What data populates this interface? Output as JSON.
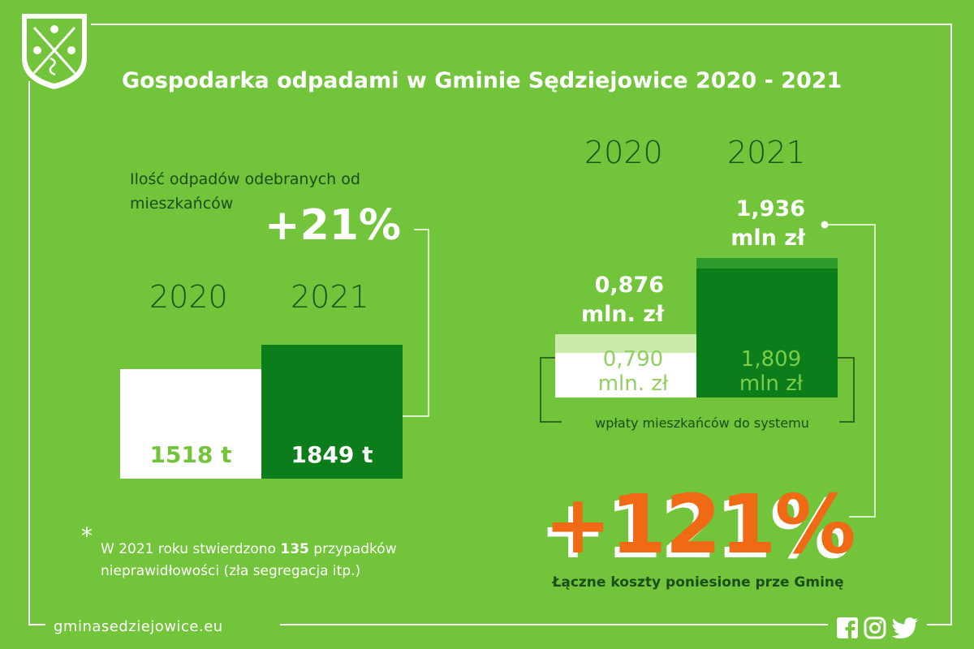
{
  "title": "Gospodarka odpadami w Gminie Sędziejowice 2020 - 2021",
  "waste": {
    "subtitle": "Ilość odpadów odebranych od mieszkańców",
    "change": "+21%",
    "year_2020": "2020",
    "year_2021": "2021",
    "label_2020": "1518 t",
    "label_2021": "1849 t"
  },
  "finance": {
    "year_2020": "2020",
    "year_2021": "2021",
    "total_2020_line1": "0,876",
    "total_2020_line2": "mln. zł",
    "total_2021_line1": "1,936",
    "total_2021_line2": "mln zł",
    "resident_2020_line1": "0,790",
    "resident_2020_line2": "mln. zł",
    "resident_2021_line1": "1,809",
    "resident_2021_line2": "mln zł",
    "resident_label": "wpłaty mieszkańców do systemu",
    "change": "+121%",
    "change_label": "Łączne koszty poniesione prze Gminę"
  },
  "note": {
    "before": "W 2021 roku stwierdzono ",
    "count": "135",
    "after": " przypadków nieprawidłowości (zła segregacja itp.)"
  },
  "footer": {
    "url": "gminasedziejowice.eu",
    "icons": [
      "facebook-icon",
      "instagram-icon",
      "twitter-icon"
    ]
  },
  "colors": {
    "background": "#72c43a",
    "dark_green": "#0b7d1b",
    "white": "#ffffff",
    "orange": "#f06a16"
  },
  "chart_data": [
    {
      "type": "bar",
      "categories": [
        "2020",
        "2021"
      ],
      "values": [
        1518,
        1849
      ],
      "unit": "t"
    },
    {
      "type": "bar",
      "categories": [
        "2020",
        "2021"
      ],
      "series": [
        {
          "name": "wpłaty mieszkańców do systemu",
          "values": [
            0.79,
            1.809
          ]
        },
        {
          "values": [
            0.876,
            1.936
          ]
        }
      ],
      "unit": "mln zł"
    }
  ]
}
